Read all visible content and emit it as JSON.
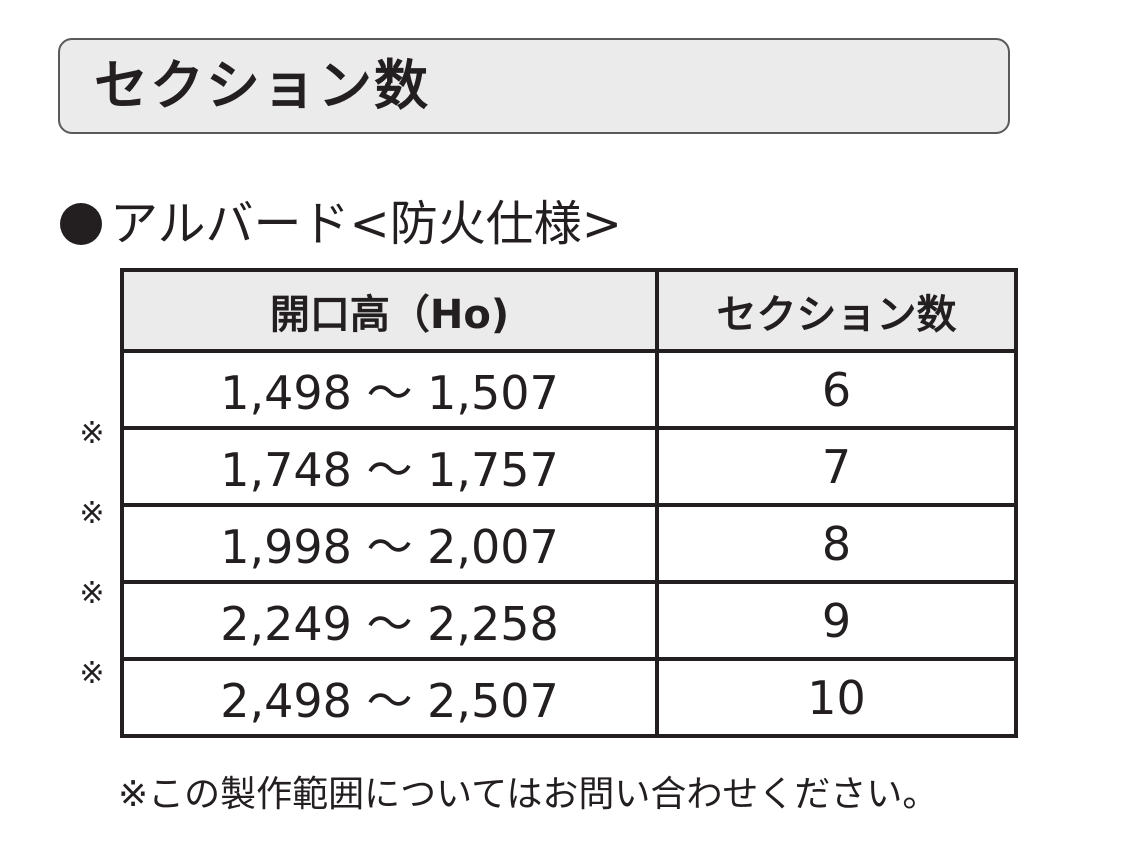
{
  "title": "セクション数",
  "subheading": "アルバード<防火仕様>",
  "table": {
    "headers": [
      "開口高（Ho)",
      "セクション数"
    ],
    "rows": [
      {
        "range": "1,498 ～ 1,507",
        "sections": "6"
      },
      {
        "range": "1,748 ～ 1,757",
        "sections": "7"
      },
      {
        "range": "1,998 ～ 2,007",
        "sections": "8"
      },
      {
        "range": "2,249 ～ 2,258",
        "sections": "9"
      },
      {
        "range": "2,498 ～ 2,507",
        "sections": "10"
      }
    ]
  },
  "marks": [
    "※",
    "※",
    "※",
    "※"
  ],
  "footnote": "※この製作範囲についてはお問い合わせください。"
}
